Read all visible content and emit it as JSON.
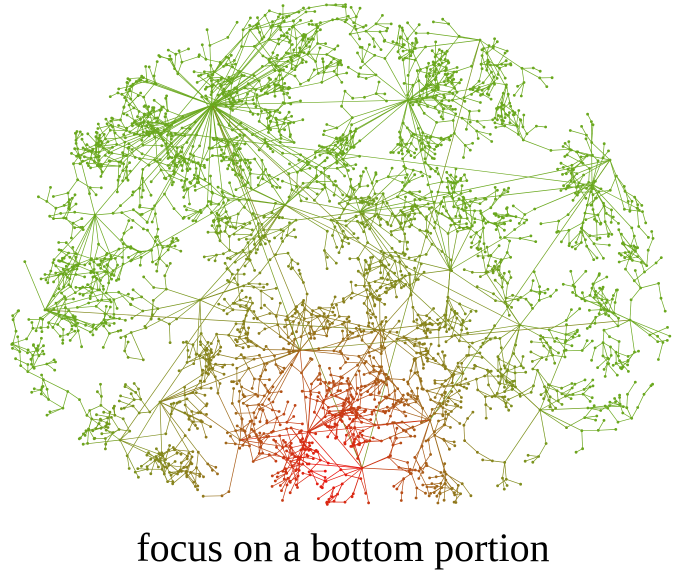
{
  "caption": "focus on a bottom portion",
  "colors": {
    "top_color": "#6aa81e",
    "mid_color": "#8f7a1c",
    "bottom_color": "#f01010"
  },
  "graph": {
    "style": "radial tree / network layout",
    "node_glyph": "dot",
    "edge_glyph": "thin line",
    "color_gradient_direction": "green at top to red at bottom"
  }
}
